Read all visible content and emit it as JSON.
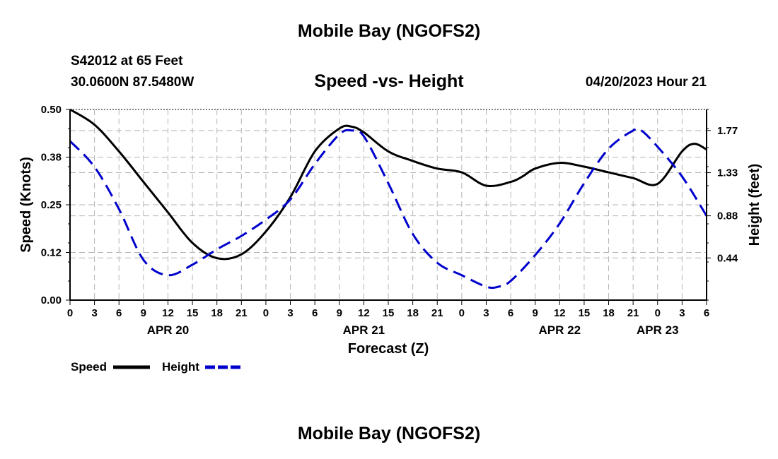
{
  "page": {
    "title_top": "Mobile Bay (NGOFS2)",
    "title_bottom": "Mobile Bay (NGOFS2)",
    "station": "S42012 at 65 Feet",
    "coords": "30.0600N  87.5480W",
    "subtitle": "Speed -vs- Height",
    "datetime": "04/20/2023 Hour 21"
  },
  "chart_data": {
    "type": "line",
    "title": "Speed -vs- Height",
    "xlabel": "Forecast (Z)",
    "ylabel_left": "Speed (Knots)",
    "ylabel_right": "Height (feet)",
    "x_unit": "hours from 04/20 00Z",
    "xlim": [
      0,
      78
    ],
    "ylim_left": [
      0,
      0.5
    ],
    "ylim_right": [
      0,
      1.99
    ],
    "x_tick_values": [
      0,
      3,
      6,
      9,
      12,
      15,
      18,
      21,
      24,
      27,
      30,
      33,
      36,
      39,
      42,
      45,
      48,
      51,
      54,
      57,
      60,
      63,
      66,
      69,
      72,
      75,
      78
    ],
    "x_tick_labels": [
      "0",
      "3",
      "6",
      "9",
      "12",
      "15",
      "18",
      "21",
      "0",
      "3",
      "6",
      "9",
      "12",
      "15",
      "18",
      "21",
      "0",
      "3",
      "6",
      "9",
      "12",
      "15",
      "18",
      "21",
      "0",
      "3",
      "6"
    ],
    "date_labels": [
      {
        "label": "APR 20",
        "x": 12
      },
      {
        "label": "APR 21",
        "x": 36
      },
      {
        "label": "APR 22",
        "x": 60
      },
      {
        "label": "APR 23",
        "x": 72
      }
    ],
    "y_left_ticks": [
      "0.00",
      "0.12",
      "0.25",
      "0.38",
      "0.50"
    ],
    "y_left_tick_values": [
      0,
      0.125,
      0.25,
      0.375,
      0.5
    ],
    "y_right_ticks": [
      "0.44",
      "0.88",
      "1.33",
      "1.77"
    ],
    "y_right_tick_values": [
      0.44,
      0.88,
      1.33,
      1.77
    ],
    "grid": true,
    "legend_position": "bottom-left",
    "series": [
      {
        "name": "Speed",
        "axis": "left",
        "color": "#000000",
        "style": "solid",
        "x": [
          0,
          3,
          6,
          9,
          12,
          15,
          18,
          21,
          24,
          27,
          30,
          33,
          34.5,
          36,
          39,
          42,
          45,
          48,
          51,
          54,
          55.5,
          57,
          60,
          63,
          66,
          69,
          72,
          75,
          76.5,
          78
        ],
        "y": [
          0.5,
          0.46,
          0.39,
          0.31,
          0.23,
          0.15,
          0.11,
          0.12,
          0.18,
          0.27,
          0.39,
          0.45,
          0.455,
          0.44,
          0.39,
          0.365,
          0.345,
          0.335,
          0.3,
          0.31,
          0.325,
          0.345,
          0.36,
          0.35,
          0.335,
          0.32,
          0.305,
          0.39,
          0.41,
          0.395
        ]
      },
      {
        "name": "Height",
        "axis": "right",
        "color": "#0000CC",
        "style": "dashed",
        "x": [
          0,
          3,
          6,
          9,
          12,
          15,
          18,
          21,
          24,
          27,
          30,
          33,
          34.5,
          36,
          39,
          42,
          45,
          48,
          51,
          52.5,
          54,
          57,
          60,
          63,
          66,
          69,
          70,
          72,
          75,
          78
        ],
        "y": [
          1.66,
          1.39,
          0.95,
          0.42,
          0.26,
          0.37,
          0.53,
          0.67,
          0.84,
          1.05,
          1.42,
          1.73,
          1.77,
          1.71,
          1.22,
          0.69,
          0.39,
          0.26,
          0.14,
          0.14,
          0.2,
          0.47,
          0.8,
          1.22,
          1.58,
          1.77,
          1.77,
          1.6,
          1.29,
          0.88
        ]
      }
    ]
  }
}
